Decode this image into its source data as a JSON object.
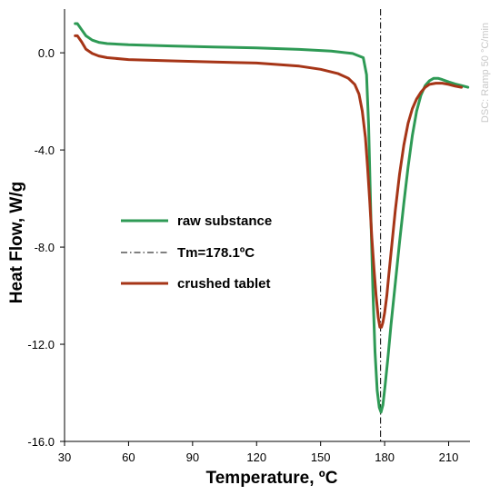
{
  "chart_data": {
    "type": "line",
    "xlabel": "Temperature, ºC",
    "ylabel": "Heat Flow, W/g",
    "xlim": [
      30,
      220
    ],
    "ylim": [
      -16.0,
      1.8
    ],
    "xticks": [
      30,
      60,
      90,
      120,
      150,
      180,
      210
    ],
    "xtick_labels": [
      "30",
      "60",
      "90",
      "120",
      "150",
      "180",
      "210"
    ],
    "yticks": [
      0.0,
      -4.0,
      -8.0,
      -12.0,
      -16.0
    ],
    "ytick_labels": [
      "0.0",
      "-4.0",
      "-8.0",
      "-12.0",
      "-16.0"
    ],
    "grid": false,
    "legend_position": "center-left",
    "side_note": "DSC: Ramp 50 °C/min",
    "marker_line": {
      "label": "Tm=178.1ºC",
      "x": 178.1,
      "color": "#000000"
    },
    "series": [
      {
        "name": "raw substance",
        "color": "#2e9a55",
        "x": [
          35,
          36,
          38,
          40,
          43,
          46,
          50,
          60,
          80,
          100,
          120,
          140,
          155,
          165,
          170,
          171.5,
          172.5,
          173.5,
          174.5,
          175.5,
          176.5,
          177.5,
          178.3,
          179.2,
          180.2,
          181.5,
          183,
          185,
          187,
          189,
          191,
          193,
          195,
          197,
          199,
          201,
          203,
          205,
          207,
          210,
          213,
          216,
          219
        ],
        "values": [
          1.2,
          1.2,
          0.95,
          0.7,
          0.52,
          0.43,
          0.38,
          0.33,
          0.28,
          0.24,
          0.2,
          0.14,
          0.07,
          -0.03,
          -0.2,
          -0.9,
          -3.0,
          -6.5,
          -9.8,
          -12.3,
          -13.9,
          -14.6,
          -14.8,
          -14.5,
          -13.7,
          -12.6,
          -11.2,
          -9.5,
          -7.8,
          -6.2,
          -4.7,
          -3.4,
          -2.4,
          -1.75,
          -1.35,
          -1.15,
          -1.05,
          -1.05,
          -1.1,
          -1.2,
          -1.28,
          -1.35,
          -1.42
        ]
      },
      {
        "name": "crushed tablet",
        "color": "#a63517",
        "x": [
          35,
          36,
          38,
          40,
          43,
          46,
          50,
          60,
          80,
          100,
          120,
          140,
          150,
          158,
          163,
          166,
          168,
          169.5,
          171,
          172,
          173,
          174,
          175,
          176,
          177,
          177.8,
          178.5,
          179.2,
          180,
          181,
          182,
          183.5,
          185,
          187,
          189,
          191,
          193,
          195,
          197,
          199,
          201,
          204,
          207,
          210,
          213,
          216
        ],
        "values": [
          0.7,
          0.7,
          0.45,
          0.15,
          -0.03,
          -0.13,
          -0.2,
          -0.28,
          -0.33,
          -0.38,
          -0.42,
          -0.55,
          -0.68,
          -0.85,
          -1.05,
          -1.3,
          -1.7,
          -2.4,
          -3.5,
          -4.7,
          -6.1,
          -7.6,
          -8.9,
          -10.0,
          -10.9,
          -11.3,
          -11.3,
          -11.1,
          -10.7,
          -10.0,
          -9.1,
          -7.8,
          -6.5,
          -5.0,
          -3.8,
          -2.9,
          -2.3,
          -1.9,
          -1.62,
          -1.42,
          -1.3,
          -1.25,
          -1.25,
          -1.3,
          -1.37,
          -1.42
        ]
      }
    ]
  }
}
